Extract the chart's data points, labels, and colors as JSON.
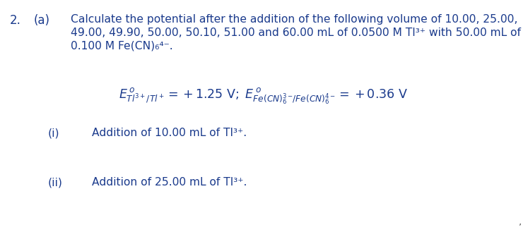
{
  "background_color": "#ffffff",
  "fig_width": 7.47,
  "fig_height": 3.46,
  "dpi": 100,
  "text_color": "#1a3a8c",
  "number": "2.",
  "label_a": "(a)",
  "main_text_line1": "Calculate the potential after the addition of the following volume of 10.00, 25.00,",
  "main_text_line2": "49.00, 49.90, 50.00, 50.10, 51.00 and 60.00 mL of 0.0500 M Tl³⁺ with 50.00 mL of",
  "main_text_line3": "0.100 M Fe(CN)₆⁴⁻.",
  "main_text_fontsize": 11.2,
  "sub_i_label": "(i)",
  "sub_i_text": "Addition of 10.00 mL of Tl³⁺.",
  "sub_ii_label": "(ii)",
  "sub_ii_text": "Addition of 25.00 mL of Tl³⁺.",
  "eq_fontsize": 12.5,
  "font_family": "DejaVu Sans"
}
